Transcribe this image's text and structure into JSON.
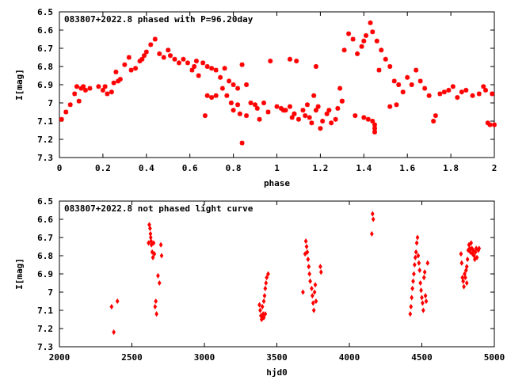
{
  "chart_data": [
    {
      "type": "scatter",
      "title": "083807+2022.8 phased with P=96.20day",
      "xlabel": "phase",
      "ylabel": "I[mag]",
      "xlim": [
        0,
        2
      ],
      "ylim": [
        7.3,
        6.5
      ],
      "y_inverted": true,
      "xticks": [
        "0",
        "0.2",
        "0.4",
        "0.6",
        "0.8",
        "1",
        "1.2",
        "1.4",
        "1.6",
        "1.8",
        "2"
      ],
      "yticks": [
        "6.5",
        "6.6",
        "6.7",
        "6.8",
        "6.9",
        "7",
        "7.1",
        "7.2",
        "7.3"
      ],
      "marker": "plus-star",
      "color": "#ff0000",
      "points": [
        [
          0.01,
          7.09
        ],
        [
          0.03,
          7.05
        ],
        [
          0.05,
          7.01
        ],
        [
          0.07,
          6.95
        ],
        [
          0.08,
          6.91
        ],
        [
          0.09,
          6.99
        ],
        [
          0.1,
          6.92
        ],
        [
          0.11,
          6.91
        ],
        [
          0.12,
          6.93
        ],
        [
          0.14,
          6.92
        ],
        [
          0.18,
          6.91
        ],
        [
          0.2,
          6.93
        ],
        [
          0.21,
          6.91
        ],
        [
          0.22,
          6.95
        ],
        [
          0.24,
          6.94
        ],
        [
          0.25,
          6.89
        ],
        [
          0.26,
          6.83
        ],
        [
          0.27,
          6.88
        ],
        [
          0.28,
          6.87
        ],
        [
          0.3,
          6.79
        ],
        [
          0.32,
          6.75
        ],
        [
          0.33,
          6.82
        ],
        [
          0.35,
          6.81
        ],
        [
          0.37,
          6.77
        ],
        [
          0.38,
          6.76
        ],
        [
          0.39,
          6.74
        ],
        [
          0.4,
          6.72
        ],
        [
          0.42,
          6.68
        ],
        [
          0.44,
          6.65
        ],
        [
          0.46,
          6.73
        ],
        [
          0.48,
          6.75
        ],
        [
          0.5,
          6.71
        ],
        [
          0.51,
          6.74
        ],
        [
          0.53,
          6.76
        ],
        [
          0.55,
          6.78
        ],
        [
          0.57,
          6.76
        ],
        [
          0.59,
          6.78
        ],
        [
          0.61,
          6.82
        ],
        [
          0.62,
          6.8
        ],
        [
          0.63,
          6.77
        ],
        [
          0.64,
          6.85
        ],
        [
          0.66,
          6.78
        ],
        [
          0.68,
          6.8
        ],
        [
          0.7,
          6.81
        ],
        [
          0.72,
          6.82
        ],
        [
          0.74,
          6.86
        ],
        [
          0.76,
          6.81
        ],
        [
          0.78,
          6.88
        ],
        [
          0.8,
          6.9
        ],
        [
          0.82,
          6.92
        ],
        [
          0.84,
          6.79
        ],
        [
          0.86,
          6.9
        ],
        [
          0.67,
          7.07
        ],
        [
          0.68,
          6.96
        ],
        [
          0.7,
          6.97
        ],
        [
          0.72,
          6.96
        ],
        [
          0.75,
          6.92
        ],
        [
          0.77,
          6.96
        ],
        [
          0.79,
          7.0
        ],
        [
          0.8,
          7.04
        ],
        [
          0.82,
          7.01
        ],
        [
          0.83,
          7.06
        ],
        [
          0.84,
          7.22
        ],
        [
          0.86,
          7.07
        ],
        [
          0.88,
          7.0
        ],
        [
          0.9,
          7.01
        ],
        [
          0.91,
          7.03
        ],
        [
          0.92,
          7.09
        ],
        [
          0.94,
          7.0
        ],
        [
          0.96,
          7.05
        ],
        [
          0.97,
          6.77
        ],
        [
          1.0,
          7.02
        ],
        [
          1.02,
          7.03
        ],
        [
          1.03,
          7.04
        ],
        [
          1.04,
          7.04
        ],
        [
          1.06,
          7.02
        ],
        [
          1.07,
          7.08
        ],
        [
          1.08,
          7.06
        ],
        [
          1.1,
          7.09
        ],
        [
          1.12,
          7.04
        ],
        [
          1.14,
          7.01
        ],
        [
          1.15,
          7.08
        ],
        [
          1.16,
          7.11
        ],
        [
          1.17,
          6.96
        ],
        [
          1.18,
          7.04
        ],
        [
          1.19,
          7.02
        ],
        [
          1.2,
          7.14
        ],
        [
          1.21,
          7.1
        ],
        [
          1.23,
          7.06
        ],
        [
          1.24,
          7.04
        ],
        [
          1.25,
          7.11
        ],
        [
          1.27,
          7.09
        ],
        [
          1.29,
          6.92
        ],
        [
          1.3,
          6.99
        ],
        [
          1.31,
          6.71
        ],
        [
          1.33,
          6.62
        ],
        [
          1.35,
          6.65
        ],
        [
          1.37,
          6.73
        ],
        [
          1.39,
          6.69
        ],
        [
          1.4,
          6.66
        ],
        [
          1.41,
          6.63
        ],
        [
          1.43,
          6.56
        ],
        [
          1.44,
          6.61
        ],
        [
          1.46,
          6.66
        ],
        [
          1.48,
          6.71
        ],
        [
          1.5,
          6.76
        ],
        [
          1.52,
          6.8
        ],
        [
          1.54,
          6.88
        ],
        [
          1.56,
          6.9
        ],
        [
          1.58,
          6.94
        ],
        [
          1.6,
          6.86
        ],
        [
          1.62,
          6.9
        ],
        [
          1.64,
          6.82
        ],
        [
          1.66,
          6.88
        ],
        [
          1.68,
          6.92
        ],
        [
          1.7,
          6.96
        ],
        [
          1.72,
          7.1
        ],
        [
          1.73,
          7.07
        ],
        [
          1.75,
          6.95
        ],
        [
          1.77,
          6.94
        ],
        [
          1.79,
          6.93
        ],
        [
          1.81,
          6.91
        ],
        [
          1.83,
          6.97
        ],
        [
          1.85,
          6.94
        ],
        [
          1.87,
          6.93
        ],
        [
          1.9,
          6.96
        ],
        [
          1.93,
          6.95
        ],
        [
          1.95,
          6.91
        ],
        [
          1.96,
          6.93
        ],
        [
          1.97,
          7.11
        ],
        [
          1.98,
          7.12
        ],
        [
          1.99,
          6.95
        ],
        [
          2.0,
          7.12
        ],
        [
          1.36,
          7.07
        ],
        [
          1.4,
          7.08
        ],
        [
          1.42,
          7.09
        ],
        [
          1.44,
          7.1
        ],
        [
          1.45,
          7.12
        ],
        [
          1.45,
          7.14
        ],
        [
          1.45,
          7.16
        ],
        [
          1.52,
          7.02
        ],
        [
          1.55,
          7.01
        ],
        [
          1.47,
          6.82
        ],
        [
          1.06,
          6.76
        ],
        [
          1.09,
          6.77
        ],
        [
          1.18,
          6.8
        ],
        [
          1.28,
          7.03
        ],
        [
          1.3,
          6.99
        ],
        [
          1.08,
          7.06
        ],
        [
          1.13,
          7.07
        ]
      ]
    },
    {
      "type": "scatter",
      "title": "083807+2022.8 not phased light curve",
      "xlabel": "hjd0",
      "ylabel": "I[mag]",
      "xlim": [
        2000,
        5000
      ],
      "ylim": [
        7.3,
        6.5
      ],
      "y_inverted": true,
      "xticks": [
        "2000",
        "2500",
        "3000",
        "3500",
        "4000",
        "4500",
        "5000"
      ],
      "yticks": [
        "6.5",
        "6.6",
        "6.7",
        "6.8",
        "6.9",
        "7",
        "7.1",
        "7.2",
        "7.3"
      ],
      "marker": "diamond",
      "color": "#ff0000",
      "points": [
        [
          2360,
          7.08
        ],
        [
          2375,
          7.22
        ],
        [
          2400,
          7.05
        ],
        [
          2620,
          6.63
        ],
        [
          2625,
          6.65
        ],
        [
          2628,
          6.68
        ],
        [
          2630,
          6.7
        ],
        [
          2632,
          6.72
        ],
        [
          2635,
          6.74
        ],
        [
          2640,
          6.78
        ],
        [
          2645,
          6.81
        ],
        [
          2650,
          6.73
        ],
        [
          2655,
          6.79
        ],
        [
          2660,
          7.08
        ],
        [
          2665,
          7.05
        ],
        [
          2670,
          7.12
        ],
        [
          2680,
          6.91
        ],
        [
          2690,
          6.95
        ],
        [
          2700,
          6.74
        ],
        [
          2705,
          6.8
        ],
        [
          2615,
          6.73
        ],
        [
          3380,
          7.07
        ],
        [
          3385,
          7.1
        ],
        [
          3390,
          7.13
        ],
        [
          3395,
          7.15
        ],
        [
          3400,
          7.08
        ],
        [
          3405,
          7.12
        ],
        [
          3410,
          7.05
        ],
        [
          3415,
          7.02
        ],
        [
          3420,
          6.98
        ],
        [
          3425,
          6.95
        ],
        [
          3430,
          6.92
        ],
        [
          3440,
          6.9
        ],
        [
          3410,
          7.14
        ],
        [
          3400,
          7.14
        ],
        [
          3420,
          7.12
        ],
        [
          3680,
          7.0
        ],
        [
          3700,
          6.72
        ],
        [
          3705,
          6.75
        ],
        [
          3710,
          6.78
        ],
        [
          3715,
          6.82
        ],
        [
          3720,
          6.86
        ],
        [
          3725,
          6.9
        ],
        [
          3730,
          6.94
        ],
        [
          3740,
          6.98
        ],
        [
          3745,
          7.02
        ],
        [
          3750,
          7.06
        ],
        [
          3755,
          7.1
        ],
        [
          3760,
          7.0
        ],
        [
          3765,
          6.96
        ],
        [
          3800,
          6.86
        ],
        [
          3805,
          6.89
        ],
        [
          3770,
          7.05
        ],
        [
          3695,
          6.79
        ],
        [
          4160,
          6.57
        ],
        [
          4165,
          6.6
        ],
        [
          4155,
          6.68
        ],
        [
          4420,
          7.12
        ],
        [
          4425,
          7.08
        ],
        [
          4430,
          7.03
        ],
        [
          4435,
          6.98
        ],
        [
          4440,
          6.94
        ],
        [
          4445,
          6.9
        ],
        [
          4450,
          6.85
        ],
        [
          4455,
          6.81
        ],
        [
          4460,
          6.78
        ],
        [
          4465,
          6.73
        ],
        [
          4470,
          6.7
        ],
        [
          4475,
          6.8
        ],
        [
          4480,
          6.84
        ],
        [
          4485,
          6.88
        ],
        [
          4490,
          6.95
        ],
        [
          4495,
          6.99
        ],
        [
          4500,
          7.03
        ],
        [
          4505,
          7.06
        ],
        [
          4510,
          7.1
        ],
        [
          4515,
          6.92
        ],
        [
          4520,
          6.89
        ],
        [
          4525,
          7.02
        ],
        [
          4530,
          7.05
        ],
        [
          4540,
          6.84
        ],
        [
          4770,
          6.79
        ],
        [
          4775,
          6.84
        ],
        [
          4780,
          6.92
        ],
        [
          4785,
          6.94
        ],
        [
          4790,
          6.97
        ],
        [
          4795,
          6.9
        ],
        [
          4800,
          6.92
        ],
        [
          4805,
          6.88
        ],
        [
          4810,
          6.86
        ],
        [
          4815,
          6.82
        ],
        [
          4820,
          6.77
        ],
        [
          4825,
          6.74
        ],
        [
          4830,
          6.76
        ],
        [
          4835,
          6.78
        ],
        [
          4840,
          6.73
        ],
        [
          4845,
          6.76
        ],
        [
          4850,
          6.79
        ],
        [
          4855,
          6.77
        ],
        [
          4860,
          6.8
        ],
        [
          4865,
          6.82
        ],
        [
          4870,
          6.78
        ],
        [
          4875,
          6.76
        ],
        [
          4880,
          6.81
        ],
        [
          4890,
          6.77
        ],
        [
          4895,
          6.76
        ],
        [
          4810,
          6.95
        ]
      ]
    }
  ]
}
